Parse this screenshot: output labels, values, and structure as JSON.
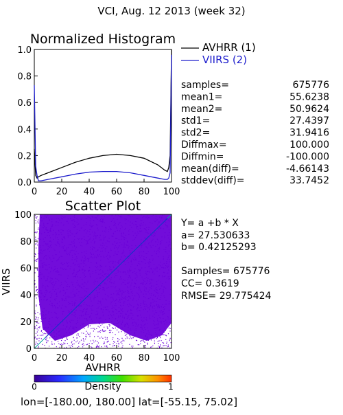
{
  "header": {
    "title": "VCI,  Aug. 12 2013 (week 32)"
  },
  "colors": {
    "avhrr": "#000000",
    "viirs": "#1c1ccc",
    "fit_line": "#2020d0",
    "scatter": "#6a00d8",
    "diagonal": "#00a0a0"
  },
  "histogram": {
    "title": "Normalized Histogram",
    "legend": [
      {
        "label": "AVHRR (1)",
        "color": "#000000"
      },
      {
        "label": "VIIRS (2)",
        "color": "#1c1ccc"
      }
    ],
    "stats": [
      {
        "label": "samples=",
        "value": "675776"
      },
      {
        "label": "mean1=",
        "value": "55.6238"
      },
      {
        "label": "mean2=",
        "value": "50.9624"
      },
      {
        "label": "std1=",
        "value": "27.4397"
      },
      {
        "label": "std2=",
        "value": "31.9416"
      },
      {
        "label": "Diffmax=",
        "value": "100.000"
      },
      {
        "label": "Diffmin=",
        "value": "-100.000"
      },
      {
        "label": "mean(diff)=",
        "value": "-4.66143"
      },
      {
        "label": "stddev(diff)=",
        "value": "33.7452"
      }
    ]
  },
  "scatter": {
    "title": "Scatter Plot",
    "regression": [
      "Y= a +b * X",
      "a= 27.530633",
      "b= 0.42125293"
    ],
    "metrics": [
      "Samples= 675776",
      "CC=  0.3619",
      "RMSE= 29.775424"
    ]
  },
  "colorbar": {
    "label": "Density",
    "min_label": "0",
    "max_label": "1"
  },
  "footer": {
    "bounds": "lon=[-180.00, 180.00] lat=[-55.15, 75.02]"
  },
  "chart_data": [
    {
      "type": "line",
      "title": "Normalized Histogram",
      "xlim": [
        0,
        100
      ],
      "ylim": [
        0,
        1.0
      ],
      "xticks": [
        "0",
        "20",
        "40",
        "60",
        "80",
        "100"
      ],
      "yticks": [
        "0.0",
        "0.2",
        "0.4",
        "0.6",
        "0.8",
        "1.0"
      ],
      "x": [
        0,
        1,
        2,
        3,
        5,
        10,
        20,
        30,
        40,
        50,
        60,
        70,
        80,
        90,
        95,
        97,
        98,
        99,
        100
      ],
      "series": [
        {
          "name": "AVHRR (1)",
          "values": [
            0.25,
            0.05,
            0.03,
            0.04,
            0.05,
            0.07,
            0.11,
            0.15,
            0.18,
            0.2,
            0.21,
            0.2,
            0.18,
            0.13,
            0.09,
            0.08,
            0.11,
            0.2,
            1.0
          ]
        },
        {
          "name": "VIIRS (2)",
          "values": [
            0.73,
            0.12,
            0.05,
            0.01,
            0.01,
            0.02,
            0.04,
            0.06,
            0.075,
            0.08,
            0.08,
            0.07,
            0.05,
            0.03,
            0.02,
            0.02,
            0.03,
            0.07,
            0.96
          ]
        }
      ]
    },
    {
      "type": "scatter",
      "title": "Scatter Plot",
      "xlabel": "AVHRR",
      "ylabel": "VIIRS",
      "xlim": [
        0,
        100
      ],
      "ylim": [
        0,
        100
      ],
      "xticks": [
        "0",
        "20",
        "40",
        "60",
        "80",
        "100"
      ],
      "yticks": [
        "0",
        "20",
        "40",
        "60",
        "80",
        "100"
      ],
      "regression": {
        "a": 27.530633,
        "b": 0.42125293
      },
      "samples": 675776,
      "cc": 0.3619,
      "rmse": 29.775424
    }
  ]
}
